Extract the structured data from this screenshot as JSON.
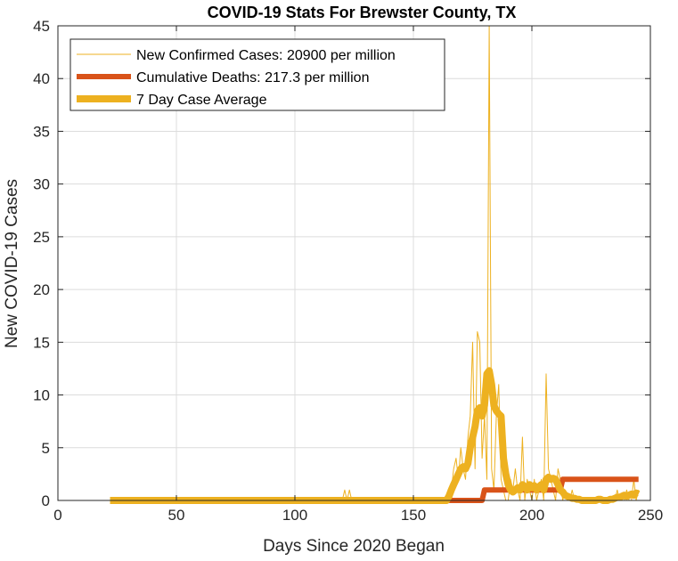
{
  "chart_data": {
    "type": "line",
    "title": "COVID-19 Stats For Brewster County, TX",
    "xlabel": "Days Since 2020 Began",
    "ylabel": "New COVID-19 Cases",
    "xlim": [
      0,
      250
    ],
    "ylim": [
      0,
      45
    ],
    "xticks": [
      0,
      50,
      100,
      150,
      200,
      250
    ],
    "yticks": [
      0,
      5,
      10,
      15,
      20,
      25,
      30,
      35,
      40,
      45
    ],
    "grid": true,
    "legend_position": "top-left",
    "series": [
      {
        "name": "New Confirmed Cases: 20900 per million",
        "color": "#EDB120",
        "line_width": "thin",
        "x": [
          22,
          120,
          121,
          122,
          123,
          124,
          165,
          166,
          167,
          168,
          169,
          170,
          171,
          172,
          173,
          174,
          175,
          176,
          177,
          178,
          179,
          180,
          181,
          182,
          183,
          184,
          185,
          186,
          187,
          188,
          189,
          190,
          191,
          192,
          193,
          194,
          195,
          196,
          197,
          198,
          199,
          200,
          201,
          202,
          203,
          204,
          205,
          206,
          207,
          208,
          209,
          210,
          211,
          212,
          213,
          214,
          215,
          216,
          217,
          218,
          219,
          220,
          221,
          222,
          223,
          224,
          225,
          226,
          227,
          228,
          229,
          230,
          231,
          232,
          233,
          234,
          235,
          236,
          237,
          238,
          239,
          240,
          241,
          242,
          243,
          244,
          245
        ],
        "y": [
          0,
          0,
          1,
          0,
          1,
          0,
          0,
          1,
          3,
          4,
          2,
          5,
          3,
          2,
          6,
          8,
          15,
          3,
          16,
          15,
          4,
          8,
          2,
          45,
          3,
          1,
          8,
          11,
          2,
          1,
          0,
          0,
          2,
          1,
          3,
          1,
          0,
          6,
          0,
          2,
          1,
          0,
          2,
          0,
          1,
          2,
          0,
          12,
          3,
          2,
          1,
          0,
          3,
          2,
          0,
          1,
          0,
          0,
          1,
          0,
          0,
          0,
          0,
          0,
          0,
          0,
          0,
          0,
          0,
          0,
          0,
          0,
          0,
          0,
          0,
          0,
          0,
          1,
          0,
          0,
          0,
          1,
          0,
          0,
          2,
          0,
          1
        ]
      },
      {
        "name": "Cumulative Deaths: 217.3 per million",
        "color": "#D95319",
        "line_width": "thick",
        "x": [
          22,
          179,
          180,
          212,
          213,
          245
        ],
        "y": [
          0,
          0,
          1,
          1,
          2,
          2
        ]
      },
      {
        "name": "7 Day Case Average",
        "color": "#EDB120",
        "line_width": "thickest",
        "x": [
          22,
          164,
          165,
          166,
          167,
          168,
          169,
          170,
          171,
          172,
          173,
          174,
          175,
          176,
          177,
          178,
          179,
          180,
          181,
          182,
          183,
          184,
          185,
          186,
          187,
          188,
          189,
          190,
          191,
          192,
          193,
          194,
          195,
          196,
          197,
          198,
          199,
          200,
          201,
          202,
          203,
          204,
          205,
          206,
          207,
          208,
          209,
          210,
          211,
          212,
          213,
          214,
          215,
          216,
          217,
          218,
          219,
          220,
          221,
          222,
          223,
          224,
          225,
          226,
          227,
          228,
          229,
          230,
          231,
          232,
          233,
          234,
          235,
          236,
          237,
          238,
          239,
          240,
          241,
          242,
          243,
          244,
          245
        ],
        "y": [
          0,
          0,
          0.4,
          1.0,
          1.5,
          2.0,
          2.5,
          3.0,
          3.2,
          3.0,
          3.5,
          5.0,
          6.0,
          7.0,
          8.5,
          8.8,
          8.0,
          9.0,
          12.0,
          12.3,
          11.0,
          9.0,
          8.5,
          8.2,
          8.0,
          4.0,
          2.5,
          1.5,
          1.0,
          0.8,
          1.0,
          1.2,
          1.0,
          1.5,
          1.3,
          1.0,
          1.5,
          1.2,
          1.4,
          1.0,
          1.3,
          1.5,
          1.0,
          2.0,
          2.2,
          2.0,
          2.1,
          2.0,
          1.5,
          1.0,
          0.8,
          0.5,
          0.4,
          0.3,
          0.2,
          0.2,
          0.1,
          0.1,
          0.0,
          0.0,
          0.0,
          0.0,
          0.0,
          0.0,
          0.0,
          0.1,
          0.1,
          0.0,
          0.0,
          0.0,
          0.1,
          0.1,
          0.2,
          0.3,
          0.3,
          0.4,
          0.5,
          0.4,
          0.5,
          0.6,
          0.5,
          0.7,
          0.6
        ]
      }
    ]
  }
}
